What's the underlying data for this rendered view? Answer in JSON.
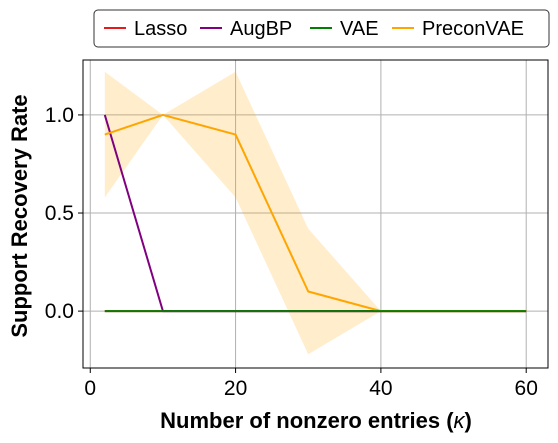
{
  "chart_data": {
    "type": "line",
    "xlabel": "Number of nonzero entries (",
    "xlabel_symbol": "κ",
    "xlabel_suffix": ")",
    "ylabel": "Support Recovery Rate",
    "xlim": [
      -1.0,
      63.0
    ],
    "ylim": [
      -0.29,
      1.28
    ],
    "xticks": [
      0,
      20,
      40,
      60
    ],
    "xtick_labels": [
      "0",
      "20",
      "40",
      "60"
    ],
    "yticks": [
      0.0,
      0.5,
      1.0
    ],
    "ytick_labels": [
      "0.0",
      "0.5",
      "1.0"
    ],
    "grid": true,
    "legend_position": "top, above plot",
    "x": [
      2,
      10,
      20,
      30,
      40,
      60
    ],
    "series": [
      {
        "name": "Lasso",
        "color": "#e41a1c",
        "values": [
          0,
          0,
          0,
          0,
          0,
          0
        ]
      },
      {
        "name": "AugBP",
        "color": "#800080",
        "values": [
          1.0,
          0,
          0,
          0,
          0,
          0
        ]
      },
      {
        "name": "VAE",
        "color": "#008000",
        "values": [
          0,
          0,
          0,
          0,
          0,
          0
        ]
      },
      {
        "name": "PreconVAE",
        "color": "#ffa500",
        "values": [
          0.9,
          1.0,
          0.9,
          0.1,
          0,
          0
        ],
        "band_upper": [
          1.22,
          1.0,
          1.22,
          0.42,
          0,
          0
        ],
        "band_lower": [
          0.58,
          1.0,
          0.58,
          -0.22,
          0,
          0
        ]
      }
    ]
  }
}
